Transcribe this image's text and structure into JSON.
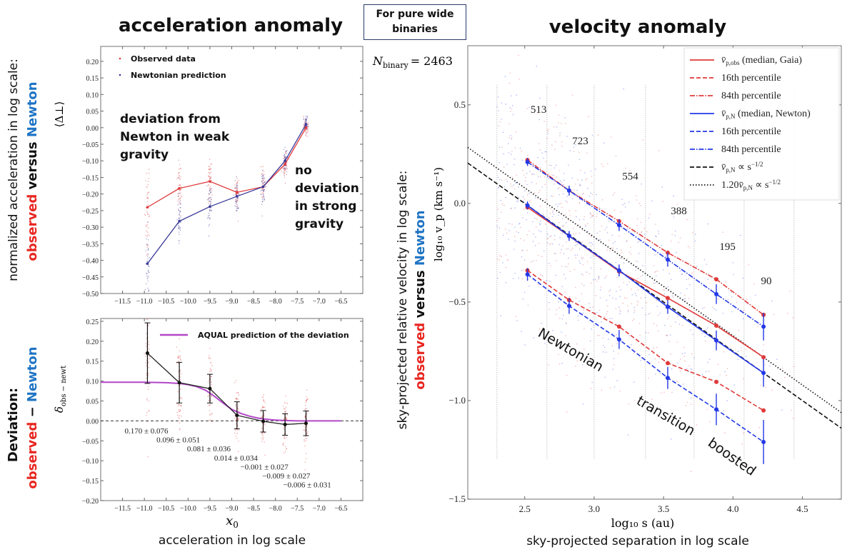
{
  "header": {
    "left_title": "acceleration anomaly",
    "right_title": "velocity anomaly",
    "box_text": "For pure wide binaries",
    "n_binary_symbol": "N",
    "n_binary_sub": "binary",
    "n_binary_value": "= 2463"
  },
  "left_labels": {
    "top_line1": "normalized acceleration in log scale:",
    "top_observed": "observed",
    "top_versus": " versus ",
    "top_newton": "Newton",
    "bottom_line1": "Deviation:",
    "bottom_observed": "observed",
    "bottom_minus": " − ",
    "bottom_newton": "Newton",
    "caption": "acceleration in log scale"
  },
  "right_labels": {
    "line1": "sky-projected relative velocity in log scale:",
    "observed": "observed",
    "versus": " versus ",
    "newton": "Newton",
    "caption": "sky-projected separation in log scale"
  },
  "colors": {
    "observed_text": "#e8251f",
    "newton_text": "#1f74c4",
    "observed": "#e03a3a",
    "newton_top": "#3a3a9a",
    "newton": "#2338e6",
    "aqual": "#b347c8",
    "deviation": "#222222"
  },
  "chart_data": [
    {
      "id": "acceleration",
      "type": "line",
      "ylabel": "⟨Δ⊥⟩",
      "xlim": [
        -12.0,
        -6.0
      ],
      "ylim": [
        -0.5,
        0.245
      ],
      "xticks": [
        -11.5,
        -11.0,
        -10.5,
        -10.0,
        -9.5,
        -9.0,
        -8.5,
        -8.0,
        -7.5,
        -7.0,
        -6.5
      ],
      "yticks": [
        -0.5,
        -0.45,
        -0.4,
        -0.35,
        -0.3,
        -0.25,
        -0.2,
        -0.15,
        -0.1,
        -0.05,
        0.0,
        0.05,
        0.1,
        0.15,
        0.2
      ],
      "x": [
        -10.93,
        -10.2,
        -9.5,
        -8.88,
        -8.28,
        -7.78,
        -7.3
      ],
      "series": [
        {
          "name": "Observed data",
          "values": [
            -0.24,
            -0.183,
            -0.162,
            -0.195,
            -0.178,
            -0.11,
            0.0
          ]
        },
        {
          "name": "Newtonian prediction",
          "values": [
            -0.41,
            -0.282,
            -0.238,
            -0.207,
            -0.178,
            -0.1,
            0.01
          ]
        }
      ],
      "annotations": [
        {
          "lines": [
            "deviation from",
            "Newton in weak",
            "gravity"
          ]
        },
        {
          "lines": [
            "no",
            "deviation",
            "in strong",
            "gravity"
          ]
        }
      ],
      "legend": "top-left",
      "grid": false
    },
    {
      "id": "deviation",
      "type": "line",
      "xlabel": "x",
      "xlabel_sub": "0",
      "ylabel": "δ",
      "ylabel_sub": "obs − newt",
      "xlim": [
        -12.0,
        -6.0
      ],
      "ylim": [
        -0.2,
        0.257
      ],
      "xticks": [
        -11.5,
        -11.0,
        -10.5,
        -10.0,
        -9.5,
        -9.0,
        -8.5,
        -8.0,
        -7.5,
        -7.0,
        -6.5
      ],
      "yticks": [
        -0.2,
        -0.15,
        -0.1,
        -0.05,
        0.0,
        0.05,
        0.1,
        0.15,
        0.2,
        0.25
      ],
      "x": [
        -10.93,
        -10.2,
        -9.5,
        -8.88,
        -8.28,
        -7.78,
        -7.3
      ],
      "values": [
        0.17,
        0.096,
        0.081,
        0.014,
        -0.001,
        -0.009,
        -0.006
      ],
      "errors": [
        0.076,
        0.051,
        0.036,
        0.034,
        0.027,
        0.027,
        0.031
      ],
      "value_labels": [
        "0.170 ± 0.076",
        "0.096 ± 0.051",
        "0.081 ± 0.036",
        "0.014 ± 0.034",
        "−0.001 ± 0.027",
        "−0.009 ± 0.027",
        "−0.006 ± 0.031"
      ],
      "aqual": {
        "name": "AQUAL prediction of the deviation",
        "x": [
          -12.0,
          -11.0,
          -10.5,
          -10.2,
          -10.0,
          -9.8,
          -9.6,
          -9.4,
          -9.2,
          -9.0,
          -8.8,
          -8.6,
          -8.4,
          -8.2,
          -8.0,
          -7.8,
          -7.5,
          -7.0,
          -6.5
        ],
        "values": [
          0.097,
          0.097,
          0.096,
          0.094,
          0.091,
          0.086,
          0.077,
          0.062,
          0.045,
          0.029,
          0.019,
          0.012,
          0.007,
          0.004,
          0.002,
          0.001,
          0.0,
          0.0,
          0.0
        ]
      },
      "reference_line": 0.0,
      "legend": "top-right",
      "grid": false
    },
    {
      "id": "velocity",
      "type": "line",
      "xlabel": "log₁₀ s (au)",
      "ylabel": "log₁₀ v_p (km s⁻¹)",
      "xlim": [
        2.09,
        4.78
      ],
      "ylim": [
        -1.5,
        0.8
      ],
      "xticks": [
        2.5,
        3.0,
        3.5,
        4.0,
        4.5
      ],
      "yticks": [
        -1.5,
        -1.0,
        -0.5,
        0.0,
        0.5
      ],
      "x": [
        2.52,
        2.82,
        3.18,
        3.53,
        3.88,
        4.22
      ],
      "bin_edges": [
        2.3,
        2.66,
        3.0,
        3.37,
        3.72,
        4.08,
        4.44
      ],
      "bin_counts": [
        "513",
        "723",
        "554",
        "388",
        "195",
        "90"
      ],
      "series": [
        {
          "key": "obs_med",
          "symbol": "v̄",
          "sub": "p,obs",
          "sup": "",
          "text": " (median, Gaia)",
          "color": "#e03a3a",
          "dash": "solid",
          "values": [
            -0.02,
            -0.165,
            -0.345,
            -0.48,
            -0.62,
            -0.78
          ]
        },
        {
          "key": "obs_16",
          "symbol": "",
          "sub": "",
          "sup": "",
          "text": "16th percentile",
          "color": "#e03a3a",
          "dash": "dashed",
          "values": [
            -0.34,
            -0.49,
            -0.625,
            -0.81,
            -0.905,
            -1.05
          ]
        },
        {
          "key": "obs_84",
          "symbol": "",
          "sub": "",
          "sup": "",
          "text": "84th percentile",
          "color": "#e03a3a",
          "dash": "dashdot",
          "values": [
            0.22,
            0.065,
            -0.09,
            -0.25,
            -0.385,
            -0.565
          ]
        },
        {
          "key": "newt_med",
          "symbol": "v̄",
          "sub": "p,N",
          "sup": "",
          "text": " (median, Newton)",
          "color": "#2338e6",
          "dash": "solid",
          "values": [
            -0.01,
            -0.165,
            -0.34,
            -0.525,
            -0.695,
            -0.86
          ]
        },
        {
          "key": "newt_16",
          "symbol": "",
          "sub": "",
          "sup": "",
          "text": "16th percentile",
          "color": "#2338e6",
          "dash": "dashed",
          "values": [
            -0.36,
            -0.52,
            -0.69,
            -0.885,
            -1.045,
            -1.21
          ]
        },
        {
          "key": "newt_84",
          "symbol": "",
          "sub": "",
          "sup": "",
          "text": "84th percentile",
          "color": "#2338e6",
          "dash": "dashdot",
          "values": [
            0.21,
            0.065,
            -0.11,
            -0.285,
            -0.46,
            -0.625
          ]
        }
      ],
      "newton_errors": [
        0.02,
        0.025,
        0.03,
        0.035,
        0.05,
        0.07
      ],
      "reference_lines": [
        {
          "symbol": "v̄",
          "sub": "p,N",
          "text": " ∝ s",
          "sup": "−1/2",
          "prefix": "",
          "dash": "dashed",
          "color": "#111111",
          "anchor_x": 2.52,
          "anchor_y": -0.01,
          "slope": -0.5
        },
        {
          "symbol": "v̄",
          "sub": "p,N",
          "text": " ∝ s",
          "sup": "−1/2",
          "prefix": "1.20",
          "dash": "dotted",
          "color": "#111111",
          "anchor_x": 2.52,
          "anchor_y": 0.069,
          "slope": -0.5
        }
      ],
      "regimes": [
        "Newtonian",
        "transition",
        "boosted"
      ],
      "legend": "top-right",
      "grid": false
    }
  ]
}
